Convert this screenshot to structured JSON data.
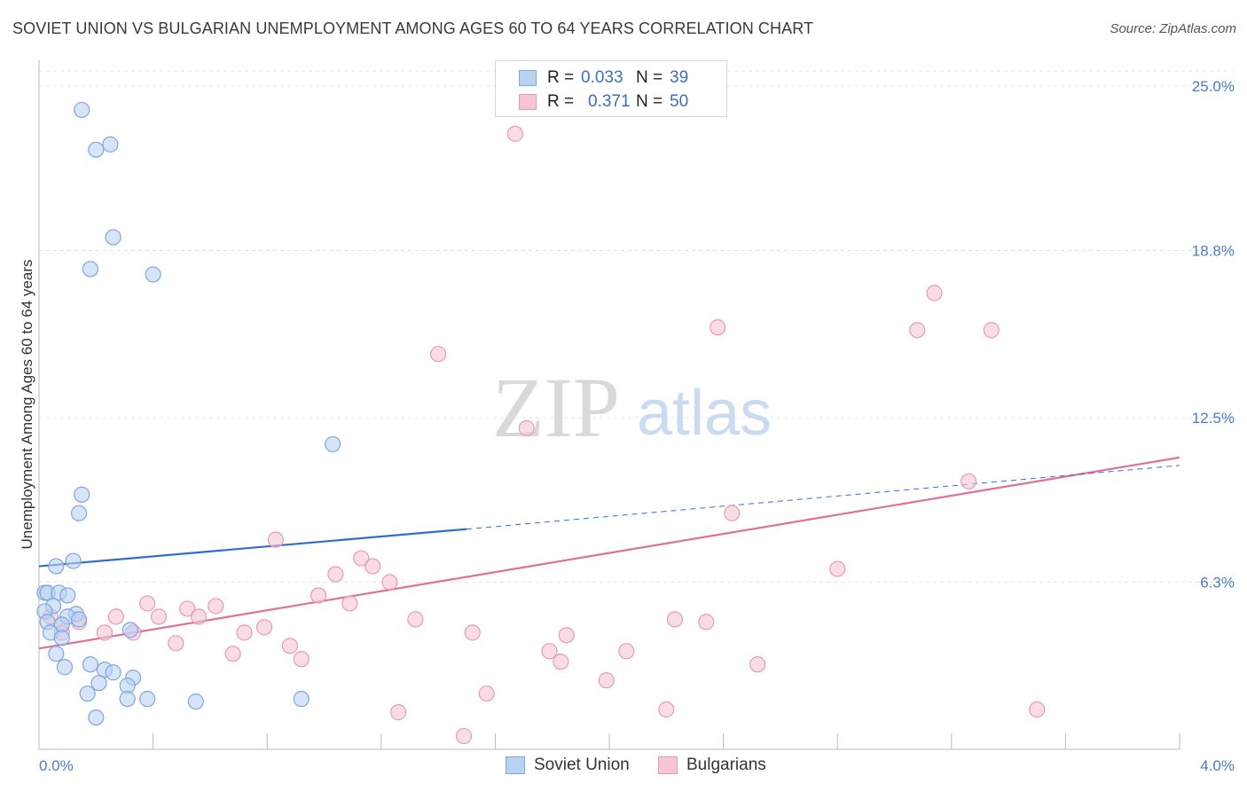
{
  "title": "SOVIET UNION VS BULGARIAN UNEMPLOYMENT AMONG AGES 60 TO 64 YEARS CORRELATION CHART",
  "source": "Source: ZipAtlas.com",
  "watermark": {
    "zip": "ZIP",
    "atlas": "atlas"
  },
  "colors": {
    "soviet_fill": "#b9d2f2",
    "soviet_stroke": "#7ea6e0",
    "soviet_line": "#2f6fcc",
    "bulg_fill": "#f7c5d4",
    "bulg_stroke": "#e99ab3",
    "bulg_line": "#e07096",
    "tick_text": "#4a7cc9"
  },
  "legend_top": [
    {
      "label": "R =",
      "r": "0.033",
      "n_label": "N =",
      "n": "39"
    },
    {
      "label": "R =",
      "r": "0.371",
      "n_label": "N =",
      "n": "50"
    }
  ],
  "legend_bottom": [
    "Soviet Union",
    "Bulgarians"
  ],
  "chart_data": {
    "type": "scatter",
    "title": "SOVIET UNION VS BULGARIAN UNEMPLOYMENT AMONG AGES 60 TO 64 YEARS CORRELATION CHART",
    "xlabel": "",
    "ylabel": "Unemployment Among Ages 60 to 64 years",
    "xlim": [
      0.0,
      4.0
    ],
    "ylim": [
      0.0,
      25.0
    ],
    "x_tick_labels": [
      "0.0%",
      "4.0%"
    ],
    "y_ticks": [
      6.3,
      12.5,
      18.8,
      25.0
    ],
    "y_tick_labels": [
      "6.3%",
      "12.5%",
      "18.8%",
      "25.0%"
    ],
    "series": [
      {
        "name": "Soviet Union",
        "R": 0.033,
        "N": 39,
        "trend": {
          "x0": 0.0,
          "y0": 6.9,
          "x1_solid": 1.5,
          "y1_solid": 8.3,
          "x1": 4.0,
          "y1": 10.7
        },
        "points": [
          [
            0.15,
            24.1
          ],
          [
            0.2,
            22.6
          ],
          [
            0.25,
            22.8
          ],
          [
            0.26,
            19.3
          ],
          [
            0.18,
            18.1
          ],
          [
            0.4,
            17.9
          ],
          [
            1.03,
            11.5
          ],
          [
            0.15,
            9.6
          ],
          [
            0.14,
            8.9
          ],
          [
            0.12,
            7.1
          ],
          [
            0.06,
            6.9
          ],
          [
            0.02,
            5.9
          ],
          [
            0.03,
            5.9
          ],
          [
            0.07,
            5.9
          ],
          [
            0.1,
            5.8
          ],
          [
            0.05,
            5.4
          ],
          [
            0.02,
            5.2
          ],
          [
            0.13,
            5.1
          ],
          [
            0.1,
            5.0
          ],
          [
            0.14,
            4.9
          ],
          [
            0.03,
            4.8
          ],
          [
            0.08,
            4.7
          ],
          [
            0.32,
            4.5
          ],
          [
            0.04,
            4.4
          ],
          [
            0.08,
            4.2
          ],
          [
            0.06,
            3.6
          ],
          [
            0.09,
            3.1
          ],
          [
            0.18,
            3.2
          ],
          [
            0.23,
            3.0
          ],
          [
            0.26,
            2.9
          ],
          [
            0.33,
            2.7
          ],
          [
            0.21,
            2.5
          ],
          [
            0.31,
            2.4
          ],
          [
            0.17,
            2.1
          ],
          [
            0.31,
            1.9
          ],
          [
            0.38,
            1.9
          ],
          [
            0.55,
            1.8
          ],
          [
            0.92,
            1.9
          ],
          [
            0.2,
            1.2
          ]
        ]
      },
      {
        "name": "Bulgarians",
        "R": 0.371,
        "N": 50,
        "trend": {
          "x0": 0.0,
          "y0": 3.8,
          "x1": 4.0,
          "y1": 11.0
        },
        "points": [
          [
            1.67,
            23.2
          ],
          [
            3.14,
            17.2
          ],
          [
            2.38,
            15.9
          ],
          [
            3.08,
            15.8
          ],
          [
            3.34,
            15.8
          ],
          [
            1.4,
            14.9
          ],
          [
            1.71,
            12.1
          ],
          [
            3.26,
            10.1
          ],
          [
            2.43,
            8.9
          ],
          [
            0.83,
            7.9
          ],
          [
            1.13,
            7.2
          ],
          [
            1.17,
            6.9
          ],
          [
            1.04,
            6.6
          ],
          [
            2.8,
            6.8
          ],
          [
            1.23,
            6.3
          ],
          [
            0.98,
            5.8
          ],
          [
            0.38,
            5.5
          ],
          [
            1.09,
            5.5
          ],
          [
            0.62,
            5.4
          ],
          [
            0.52,
            5.3
          ],
          [
            0.56,
            5.0
          ],
          [
            0.27,
            5.0
          ],
          [
            0.42,
            5.0
          ],
          [
            1.32,
            4.9
          ],
          [
            2.23,
            4.9
          ],
          [
            2.34,
            4.8
          ],
          [
            0.14,
            4.8
          ],
          [
            0.08,
            4.7
          ],
          [
            0.79,
            4.6
          ],
          [
            0.23,
            4.4
          ],
          [
            0.72,
            4.4
          ],
          [
            0.33,
            4.4
          ],
          [
            1.52,
            4.4
          ],
          [
            1.85,
            4.3
          ],
          [
            0.48,
            4.0
          ],
          [
            0.88,
            3.9
          ],
          [
            0.68,
            3.6
          ],
          [
            1.79,
            3.7
          ],
          [
            2.06,
            3.7
          ],
          [
            0.92,
            3.4
          ],
          [
            1.83,
            3.3
          ],
          [
            2.52,
            3.2
          ],
          [
            1.99,
            2.6
          ],
          [
            1.57,
            2.1
          ],
          [
            0.08,
            4.4
          ],
          [
            1.26,
            1.4
          ],
          [
            2.2,
            1.5
          ],
          [
            3.5,
            1.5
          ],
          [
            1.49,
            0.5
          ],
          [
            0.04,
            5.0
          ]
        ]
      }
    ]
  }
}
